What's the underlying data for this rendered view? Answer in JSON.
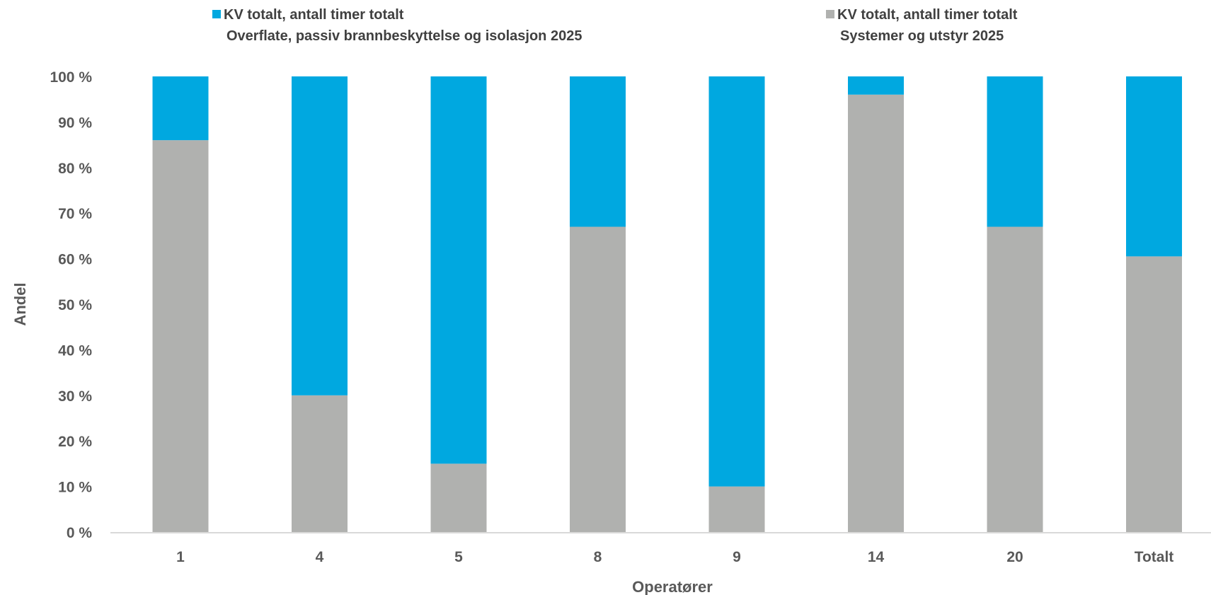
{
  "chart_data": {
    "type": "bar",
    "stacked": true,
    "percent_stacked": true,
    "categories": [
      "1",
      "4",
      "5",
      "8",
      "9",
      "14",
      "20",
      "Totalt"
    ],
    "series": [
      {
        "name": "KV totalt, antall timer totalt Systemer og utstyr 2025",
        "name_line1": "KV totalt, antall timer totalt",
        "name_line2": "Systemer og utstyr 2025",
        "color": "#b0b1af",
        "values": [
          86,
          30,
          15,
          67,
          10,
          96,
          67,
          60.5
        ]
      },
      {
        "name": "KV totalt, antall timer totalt Overflate, passiv brannbeskyttelse og isolasjon 2025",
        "name_line1": "KV totalt, antall timer totalt",
        "name_line2": "Overflate, passiv brannbeskyttelse og isolasjon 2025",
        "color": "#00a8e0",
        "values": [
          14,
          70,
          85,
          33,
          90,
          4,
          33,
          39.5
        ]
      }
    ],
    "ylim": [
      0,
      100
    ],
    "yticks": [
      "0 %",
      "10 %",
      "20 %",
      "30 %",
      "40 %",
      "50 %",
      "60 %",
      "70 %",
      "80 %",
      "90 %",
      "100 %"
    ],
    "xlabel": "Operatører",
    "ylabel": "Andel",
    "grid": false,
    "legend_position": "top"
  }
}
